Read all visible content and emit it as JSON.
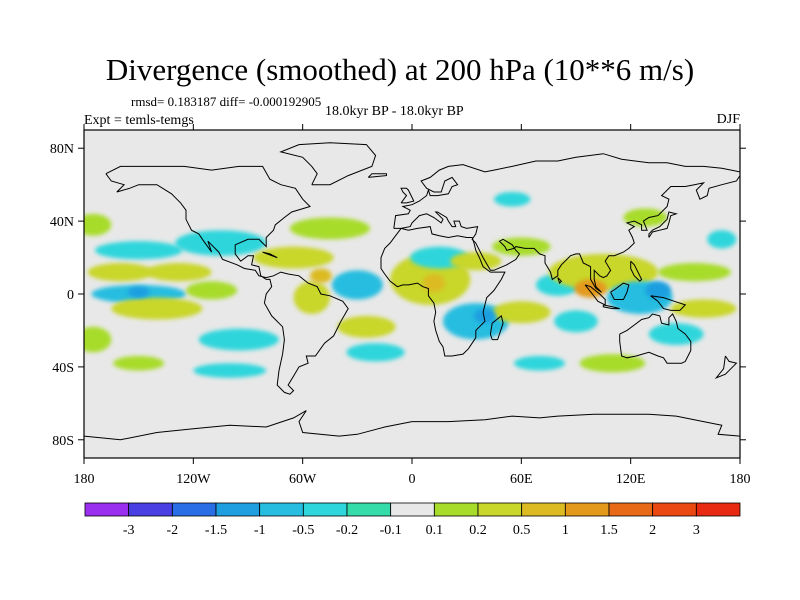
{
  "chart_data": {
    "type": "heatmap",
    "title": "Divergence (smoothed) at 200 hPa (10**6 m/s)",
    "stats_label": "rmsd= 0.183187 diff= -0.000192905",
    "experiment_label": "Expt = temls-temgs",
    "period_label": "18.0kyr BP - 18.0kyr BP",
    "season_label": "DJF",
    "xlim": [
      -180,
      180
    ],
    "ylim": [
      -90,
      90
    ],
    "x_ticks": [
      {
        "value": -180,
        "label": "180"
      },
      {
        "value": -120,
        "label": "120W"
      },
      {
        "value": -60,
        "label": "60W"
      },
      {
        "value": 0,
        "label": "0"
      },
      {
        "value": 60,
        "label": "60E"
      },
      {
        "value": 120,
        "label": "120E"
      },
      {
        "value": 180,
        "label": "180"
      }
    ],
    "y_ticks": [
      {
        "value": 80,
        "label": "80N"
      },
      {
        "value": 40,
        "label": "40N"
      },
      {
        "value": 0,
        "label": "0"
      },
      {
        "value": -40,
        "label": "40S"
      },
      {
        "value": -80,
        "label": "80S"
      }
    ],
    "colorbar": {
      "labels": [
        "-3",
        "-2",
        "-1.5",
        "-1",
        "-0.5",
        "-0.2",
        "-0.1",
        "0.1",
        "0.2",
        "0.5",
        "1",
        "1.5",
        "2",
        "3"
      ],
      "colors": [
        "#9b2ff0",
        "#4a3fe2",
        "#2a6ee6",
        "#1f9fe0",
        "#26bde0",
        "#2fd6dc",
        "#33dca8",
        "#e8e8e8",
        "#a8dc2a",
        "#c9d62a",
        "#dcbb22",
        "#e39a1c",
        "#e86a16",
        "#ea4a12",
        "#e82a12"
      ]
    },
    "field_blobs": [
      {
        "lon": -160,
        "lat": 12,
        "rx": 18,
        "ry": 5,
        "value": 0.5
      },
      {
        "lon": -128,
        "lat": 12,
        "rx": 18,
        "ry": 5,
        "value": 0.5
      },
      {
        "lon": -150,
        "lat": 0,
        "rx": 26,
        "ry": 5,
        "value": -0.5
      },
      {
        "lon": -140,
        "lat": -8,
        "rx": 25,
        "ry": 6,
        "value": 0.5
      },
      {
        "lon": -110,
        "lat": 2,
        "rx": 14,
        "ry": 5,
        "value": 0.2
      },
      {
        "lon": -150,
        "lat": 24,
        "rx": 24,
        "ry": 5,
        "value": -0.2
      },
      {
        "lon": -105,
        "lat": 28,
        "rx": 25,
        "ry": 7,
        "value": -0.2
      },
      {
        "lon": -175,
        "lat": 38,
        "rx": 10,
        "ry": 6,
        "value": 0.2
      },
      {
        "lon": -45,
        "lat": 36,
        "rx": 22,
        "ry": 6,
        "value": 0.2
      },
      {
        "lon": -65,
        "lat": 20,
        "rx": 22,
        "ry": 6,
        "value": 0.5
      },
      {
        "lon": -30,
        "lat": 5,
        "rx": 14,
        "ry": 8,
        "value": -0.5
      },
      {
        "lon": -25,
        "lat": -18,
        "rx": 16,
        "ry": 6,
        "value": 0.5
      },
      {
        "lon": -55,
        "lat": -2,
        "rx": 10,
        "ry": 9,
        "value": 0.5
      },
      {
        "lon": -95,
        "lat": -25,
        "rx": 22,
        "ry": 6,
        "value": -0.2
      },
      {
        "lon": -20,
        "lat": -32,
        "rx": 16,
        "ry": 5,
        "value": -0.2
      },
      {
        "lon": -175,
        "lat": -25,
        "rx": 10,
        "ry": 7,
        "value": 0.2
      },
      {
        "lon": -150,
        "lat": -38,
        "rx": 14,
        "ry": 4,
        "value": 0.2
      },
      {
        "lon": -100,
        "lat": -42,
        "rx": 20,
        "ry": 4,
        "value": -0.2
      },
      {
        "lon": 10,
        "lat": 8,
        "rx": 22,
        "ry": 14,
        "value": 0.5
      },
      {
        "lon": 15,
        "lat": 20,
        "rx": 16,
        "ry": 6,
        "value": -0.2
      },
      {
        "lon": 35,
        "lat": 18,
        "rx": 14,
        "ry": 5,
        "value": 0.5
      },
      {
        "lon": 60,
        "lat": 26,
        "rx": 16,
        "ry": 5,
        "value": 0.2
      },
      {
        "lon": 35,
        "lat": -15,
        "rx": 18,
        "ry": 10,
        "value": -0.5
      },
      {
        "lon": 60,
        "lat": -10,
        "rx": 16,
        "ry": 6,
        "value": 0.5
      },
      {
        "lon": 80,
        "lat": 5,
        "rx": 12,
        "ry": 6,
        "value": -0.2
      },
      {
        "lon": 90,
        "lat": -15,
        "rx": 12,
        "ry": 6,
        "value": -0.2
      },
      {
        "lon": 105,
        "lat": 12,
        "rx": 30,
        "ry": 10,
        "value": 0.5
      },
      {
        "lon": 125,
        "lat": -2,
        "rx": 18,
        "ry": 9,
        "value": -0.5
      },
      {
        "lon": 155,
        "lat": 12,
        "rx": 20,
        "ry": 5,
        "value": 0.2
      },
      {
        "lon": 160,
        "lat": -8,
        "rx": 18,
        "ry": 5,
        "value": 0.5
      },
      {
        "lon": 145,
        "lat": -22,
        "rx": 15,
        "ry": 6,
        "value": -0.2
      },
      {
        "lon": 110,
        "lat": -38,
        "rx": 18,
        "ry": 5,
        "value": 0.2
      },
      {
        "lon": 70,
        "lat": -38,
        "rx": 14,
        "ry": 4,
        "value": -0.2
      },
      {
        "lon": 55,
        "lat": 52,
        "rx": 10,
        "ry": 4,
        "value": -0.2
      },
      {
        "lon": 128,
        "lat": 42,
        "rx": 12,
        "ry": 5,
        "value": 0.2
      },
      {
        "lon": 170,
        "lat": 30,
        "rx": 8,
        "ry": 5,
        "value": -0.2
      },
      {
        "lon": -50,
        "lat": 10,
        "rx": 6,
        "ry": 4,
        "value": 1.0
      },
      {
        "lon": 12,
        "lat": 6,
        "rx": 6,
        "ry": 5,
        "value": 1.0
      },
      {
        "lon": 98,
        "lat": 3,
        "rx": 9,
        "ry": 5,
        "value": 1.5
      },
      {
        "lon": 135,
        "lat": 2,
        "rx": 7,
        "ry": 5,
        "value": -1.0
      },
      {
        "lon": -150,
        "lat": 1,
        "rx": 6,
        "ry": 3,
        "value": -1.0
      },
      {
        "lon": 40,
        "lat": -12,
        "rx": 6,
        "ry": 4,
        "value": -1.0
      }
    ]
  }
}
